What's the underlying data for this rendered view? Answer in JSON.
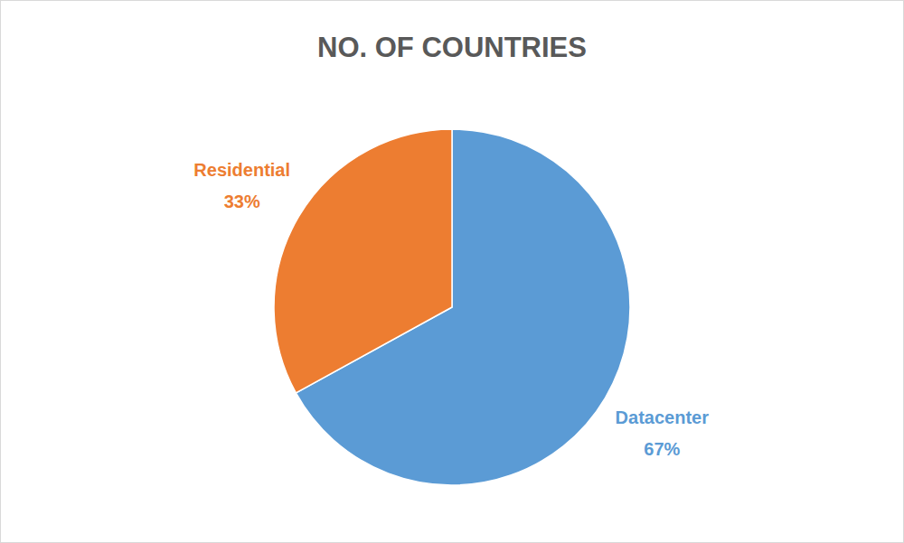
{
  "chart_data": {
    "type": "pie",
    "title": "NO. OF COUNTRIES",
    "categories": [
      "Datacenter",
      "Residential"
    ],
    "values": [
      67,
      33
    ],
    "value_labels": [
      "67%",
      "33%"
    ],
    "colors": [
      "#5b9bd5",
      "#ed7d31"
    ],
    "data_labels": true
  }
}
